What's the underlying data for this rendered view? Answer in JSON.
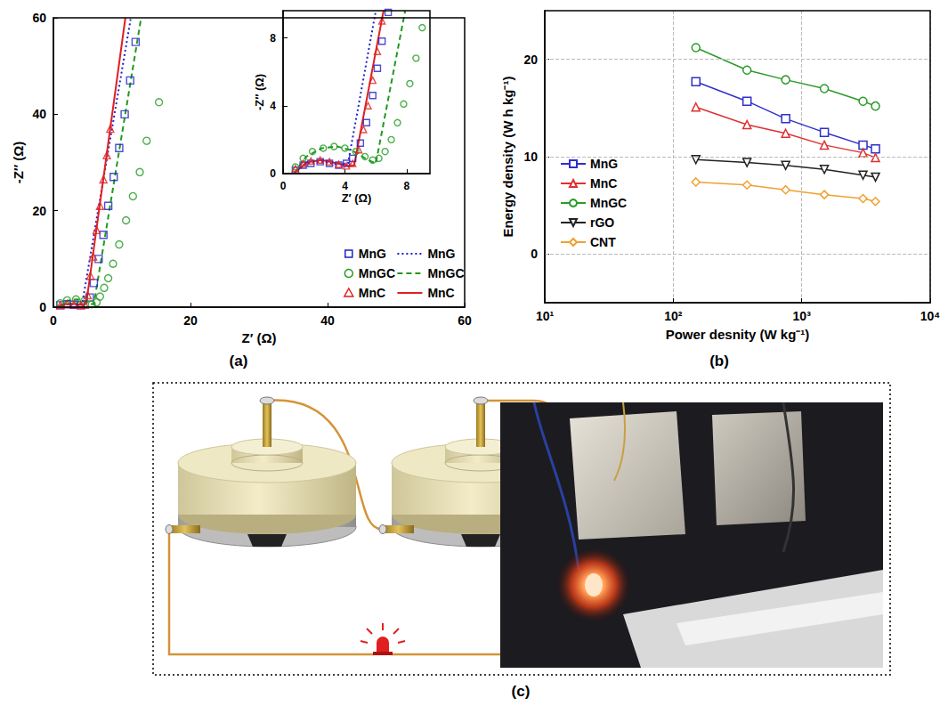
{
  "panel_labels": [
    "(a)",
    "(b)",
    "(c)"
  ],
  "chart_data": [
    {
      "type": "scatter",
      "xlabel": "Z′ (Ω)",
      "ylabel": "-Z″ (Ω)",
      "xlim": [
        0,
        60
      ],
      "xticks": [
        0,
        20,
        40,
        60
      ],
      "ylim": [
        0,
        60
      ],
      "yticks": [
        0,
        20,
        40,
        60
      ],
      "legend": "lower right",
      "series": [
        {
          "name": "MnG",
          "type": "scatter",
          "marker": "square",
          "color": "#2020c8",
          "x": [
            1.0,
            2.0,
            3.0,
            4.0,
            5.3,
            5.9,
            6.6,
            7.3,
            8.0,
            8.8,
            9.6,
            10.4,
            11.2,
            12.0
          ],
          "values": [
            0.4,
            0.6,
            0.5,
            0.4,
            2,
            5,
            10,
            15,
            21,
            27,
            33,
            40,
            47,
            55
          ]
        },
        {
          "name": "MnGC",
          "type": "scatter",
          "marker": "circle",
          "color": "#1f9a1f",
          "x": [
            1.0,
            2.0,
            3.3,
            4.5,
            5.6,
            6.3,
            6.8,
            7.4,
            8.0,
            8.7,
            9.6,
            10.6,
            11.6,
            12.6,
            13.6,
            15.4
          ],
          "values": [
            0.8,
            1.4,
            1.6,
            1.3,
            0.6,
            1.0,
            2.2,
            4,
            6,
            9,
            13,
            18,
            23,
            28,
            34.5,
            42.5
          ]
        },
        {
          "name": "MnC",
          "type": "scatter",
          "marker": "triangle",
          "color": "#e02020",
          "x": [
            1.0,
            2.0,
            3.0,
            4.0,
            4.6,
            5.0,
            5.4,
            5.8,
            6.3,
            6.8,
            7.3,
            7.8,
            8.3
          ],
          "values": [
            0.4,
            0.7,
            0.6,
            0.4,
            0.5,
            2.5,
            6.5,
            10.5,
            16,
            21,
            26.5,
            31.5,
            37
          ]
        },
        {
          "name": "MnG",
          "type": "line",
          "line_style": "dotted",
          "color": "#2020c8",
          "x": [
            0.7,
            1.5,
            2.5,
            3.5,
            4.2,
            11.3
          ],
          "values": [
            0,
            0.5,
            0.6,
            0.5,
            0.7,
            60
          ]
        },
        {
          "name": "MnGC",
          "type": "line",
          "line_style": "dashed",
          "color": "#1f9a1f",
          "x": [
            0.7,
            1.5,
            2.5,
            3.5,
            4.5,
            5.5,
            5.9,
            12.8
          ],
          "values": [
            0,
            1.0,
            1.5,
            1.6,
            1.3,
            0.7,
            0.6,
            60
          ]
        },
        {
          "name": "MnC",
          "type": "line",
          "line_style": "solid",
          "color": "#e02020",
          "x": [
            0.7,
            1.5,
            2.5,
            3.5,
            4.3,
            4.8,
            10.5
          ],
          "values": [
            0,
            0.6,
            0.7,
            0.6,
            0.4,
            0.8,
            60
          ]
        }
      ]
    },
    {
      "type": "scatter",
      "xlabel": "Z′ (Ω)",
      "ylabel": "-Z″ (Ω)",
      "xlim": [
        0,
        9.5
      ],
      "xticks": [
        0,
        4,
        8
      ],
      "ylim": [
        0,
        9.6
      ],
      "yticks": [
        0,
        4,
        8
      ],
      "series": [
        {
          "name": "MnG",
          "type": "scatter",
          "marker": "square",
          "color": "#2020c8",
          "x": [
            0.8,
            1.3,
            1.8,
            2.4,
            3.0,
            3.6,
            4.1,
            4.5,
            5.0,
            5.4,
            5.8,
            6.1,
            6.4,
            6.8
          ],
          "values": [
            0.2,
            0.5,
            0.6,
            0.7,
            0.6,
            0.5,
            0.6,
            0.9,
            1.8,
            3.0,
            4.6,
            6.2,
            7.8,
            9.5
          ]
        },
        {
          "name": "MnGC",
          "type": "scatter",
          "marker": "circle",
          "color": "#1f9a1f",
          "x": [
            0.8,
            1.3,
            1.9,
            2.6,
            3.3,
            4.0,
            4.7,
            5.3,
            5.8,
            6.2,
            6.6,
            7.0,
            7.4,
            7.8,
            8.2,
            8.6,
            9.0
          ],
          "values": [
            0.4,
            0.9,
            1.3,
            1.5,
            1.6,
            1.5,
            1.3,
            1.0,
            0.8,
            0.9,
            1.3,
            2.0,
            3.0,
            4.1,
            5.3,
            6.8,
            8.6
          ]
        },
        {
          "name": "MnC",
          "type": "scatter",
          "marker": "triangle",
          "color": "#e02020",
          "x": [
            0.8,
            1.3,
            1.8,
            2.4,
            3.0,
            3.6,
            4.1,
            4.5,
            4.9,
            5.2,
            5.5,
            5.8,
            6.1,
            6.4
          ],
          "values": [
            0.3,
            0.6,
            0.75,
            0.8,
            0.7,
            0.55,
            0.45,
            0.6,
            1.4,
            2.6,
            4.0,
            5.5,
            7.2,
            9.0
          ]
        },
        {
          "name": "MnG",
          "type": "line",
          "line_style": "dotted",
          "color": "#2020c8",
          "x": [
            0.7,
            1.5,
            2.5,
            3.5,
            4.2,
            6.0
          ],
          "values": [
            0,
            0.6,
            0.7,
            0.55,
            0.6,
            9.6
          ]
        },
        {
          "name": "MnGC",
          "type": "line",
          "line_style": "dashed",
          "color": "#1f9a1f",
          "x": [
            0.7,
            1.5,
            2.5,
            3.5,
            4.5,
            5.5,
            6.0,
            7.9
          ],
          "values": [
            0,
            1.0,
            1.5,
            1.6,
            1.35,
            0.8,
            0.6,
            9.6
          ]
        },
        {
          "name": "MnC",
          "type": "line",
          "line_style": "solid",
          "color": "#e02020",
          "x": [
            0.7,
            1.5,
            2.5,
            3.5,
            4.3,
            4.6,
            6.5
          ],
          "values": [
            0,
            0.65,
            0.8,
            0.6,
            0.45,
            0.5,
            9.6
          ]
        }
      ]
    },
    {
      "type": "line",
      "xlabel": "Power desnity (W kg⁻¹)",
      "ylabel": "Energy density (W h kg⁻¹)",
      "log": "x",
      "grid": true,
      "legend": "left",
      "x": [
        150,
        375,
        750,
        1500,
        3000,
        3750
      ],
      "xlim": [
        10,
        10000
      ],
      "xticks": [
        {
          "value": 10,
          "label": "10¹"
        },
        {
          "value": 100,
          "label": "10²"
        },
        {
          "value": 1000,
          "label": "10³"
        },
        {
          "value": 10000,
          "label": "10⁴"
        }
      ],
      "ylim": [
        -5,
        25
      ],
      "yticks": [
        0,
        10,
        20
      ],
      "series": [
        {
          "name": "MnG",
          "marker": "square",
          "color": "#3030c8",
          "values": [
            17.7,
            15.7,
            13.9,
            12.5,
            11.2,
            10.8
          ]
        },
        {
          "name": "MnC",
          "marker": "triangle",
          "color": "#e03030",
          "values": [
            15.1,
            13.3,
            12.4,
            11.2,
            10.4,
            9.9
          ]
        },
        {
          "name": "MnGC",
          "marker": "circle",
          "color": "#2a9a2a",
          "values": [
            21.2,
            18.9,
            17.9,
            17.0,
            15.7,
            15.2
          ]
        },
        {
          "name": "rGO",
          "marker": "triangle-down",
          "color": "#222222",
          "values": [
            9.7,
            9.4,
            9.1,
            8.7,
            8.1,
            7.9
          ]
        },
        {
          "name": "CNT",
          "marker": "diamond",
          "color": "#f0a030",
          "values": [
            7.4,
            7.1,
            6.6,
            6.1,
            5.7,
            5.4
          ]
        }
      ]
    }
  ]
}
